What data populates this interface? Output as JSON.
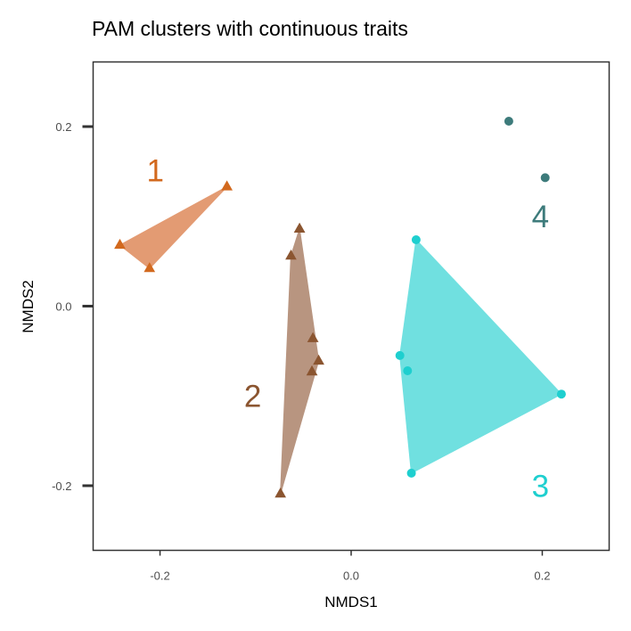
{
  "chart_data": {
    "type": "scatter",
    "title": "PAM clusters with continuous traits",
    "xlabel": "NMDS1",
    "ylabel": "NMDS2",
    "xlim": [
      -0.27,
      0.27
    ],
    "ylim": [
      -0.272,
      0.272
    ],
    "xticks": [
      -0.2,
      0.0,
      0.2
    ],
    "xtick_labels": [
      "-0.2",
      "0.0",
      "0.2"
    ],
    "yticks": [
      -0.2,
      0.0,
      0.2
    ],
    "ytick_labels": [
      "-0.2",
      "0.0",
      "0.2"
    ],
    "grid": false,
    "series": [
      {
        "label": "1",
        "color": "#d2691e",
        "fill": "#e39b73",
        "marker": "triangle",
        "points": [
          [
            -0.242,
            0.068
          ],
          [
            -0.211,
            0.042
          ],
          [
            -0.13,
            0.133
          ]
        ],
        "hull": [
          [
            -0.242,
            0.068
          ],
          [
            -0.211,
            0.042
          ],
          [
            -0.13,
            0.133
          ]
        ],
        "label_pos": [
          -0.205,
          0.148
        ]
      },
      {
        "label": "2",
        "color": "#8b5530",
        "fill": "#b89580",
        "marker": "triangle",
        "points": [
          [
            -0.054,
            0.086
          ],
          [
            -0.063,
            0.056
          ],
          [
            -0.04,
            -0.036
          ],
          [
            -0.034,
            -0.061
          ],
          [
            -0.041,
            -0.073
          ],
          [
            -0.074,
            -0.209
          ]
        ],
        "hull": [
          [
            -0.054,
            0.086
          ],
          [
            -0.034,
            -0.061
          ],
          [
            -0.074,
            -0.209
          ],
          [
            -0.063,
            0.056
          ]
        ],
        "label_pos": [
          -0.103,
          -0.103
        ]
      },
      {
        "label": "3",
        "color": "#1ecfcf",
        "fill": "#70e0e0",
        "marker": "circle",
        "points": [
          [
            0.068,
            0.074
          ],
          [
            0.051,
            -0.055
          ],
          [
            0.059,
            -0.072
          ],
          [
            0.063,
            -0.186
          ],
          [
            0.22,
            -0.098
          ]
        ],
        "hull": [
          [
            0.068,
            0.074
          ],
          [
            0.22,
            -0.098
          ],
          [
            0.063,
            -0.186
          ],
          [
            0.051,
            -0.055
          ]
        ],
        "label_pos": [
          0.198,
          -0.203
        ]
      },
      {
        "label": "4",
        "color": "#3d7b7b",
        "fill": "none",
        "marker": "circle",
        "points": [
          [
            0.165,
            0.206
          ],
          [
            0.203,
            0.143
          ]
        ],
        "hull": [],
        "label_pos": [
          0.198,
          0.097
        ]
      }
    ]
  }
}
